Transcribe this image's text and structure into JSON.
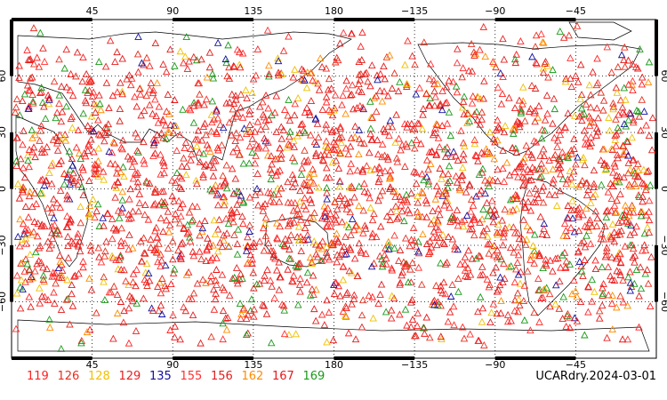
{
  "map": {
    "lon_ticks": [
      {
        "value": 45,
        "label": "45"
      },
      {
        "value": 90,
        "label": "90"
      },
      {
        "value": 135,
        "label": "135"
      },
      {
        "value": 180,
        "label": "180"
      },
      {
        "value": 225,
        "label": "−135"
      },
      {
        "value": 270,
        "label": "−90"
      },
      {
        "value": 315,
        "label": "−45"
      }
    ],
    "lat_ticks": [
      {
        "value": 60,
        "label": "60"
      },
      {
        "value": 30,
        "label": "30"
      },
      {
        "value": 0,
        "label": "0"
      },
      {
        "value": -30,
        "label": "−30"
      },
      {
        "value": -60,
        "label": "−60"
      }
    ],
    "lon_range": [
      0,
      360
    ],
    "lat_range": [
      -90,
      90
    ],
    "projection": "cylindrical equidistant",
    "gridlines": "dotted",
    "marker": "open triangle"
  },
  "legend": {
    "items": [
      {
        "label": "119",
        "color": "#ff2020"
      },
      {
        "label": "126",
        "color": "#e83020"
      },
      {
        "label": "128",
        "color": "#f0c000"
      },
      {
        "label": "129",
        "color": "#e82020"
      },
      {
        "label": "135",
        "color": "#1010a0"
      },
      {
        "label": "155",
        "color": "#ff3030"
      },
      {
        "label": "156",
        "color": "#e02020"
      },
      {
        "label": "162",
        "color": "#ff8c00"
      },
      {
        "label": "167",
        "color": "#e81818"
      },
      {
        "label": "169",
        "color": "#1a9a1a"
      }
    ]
  },
  "dataset_label": "UCARdry.2024-03-01"
}
